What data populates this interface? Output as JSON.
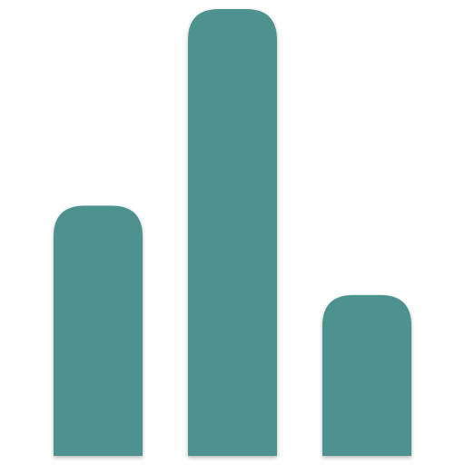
{
  "icon": {
    "name": "bar-chart-icon",
    "color": "#4e928e"
  },
  "chart_data": {
    "type": "bar",
    "values": [
      0.56,
      1.0,
      0.36
    ],
    "ylim": [
      0,
      1
    ],
    "grid": false
  }
}
